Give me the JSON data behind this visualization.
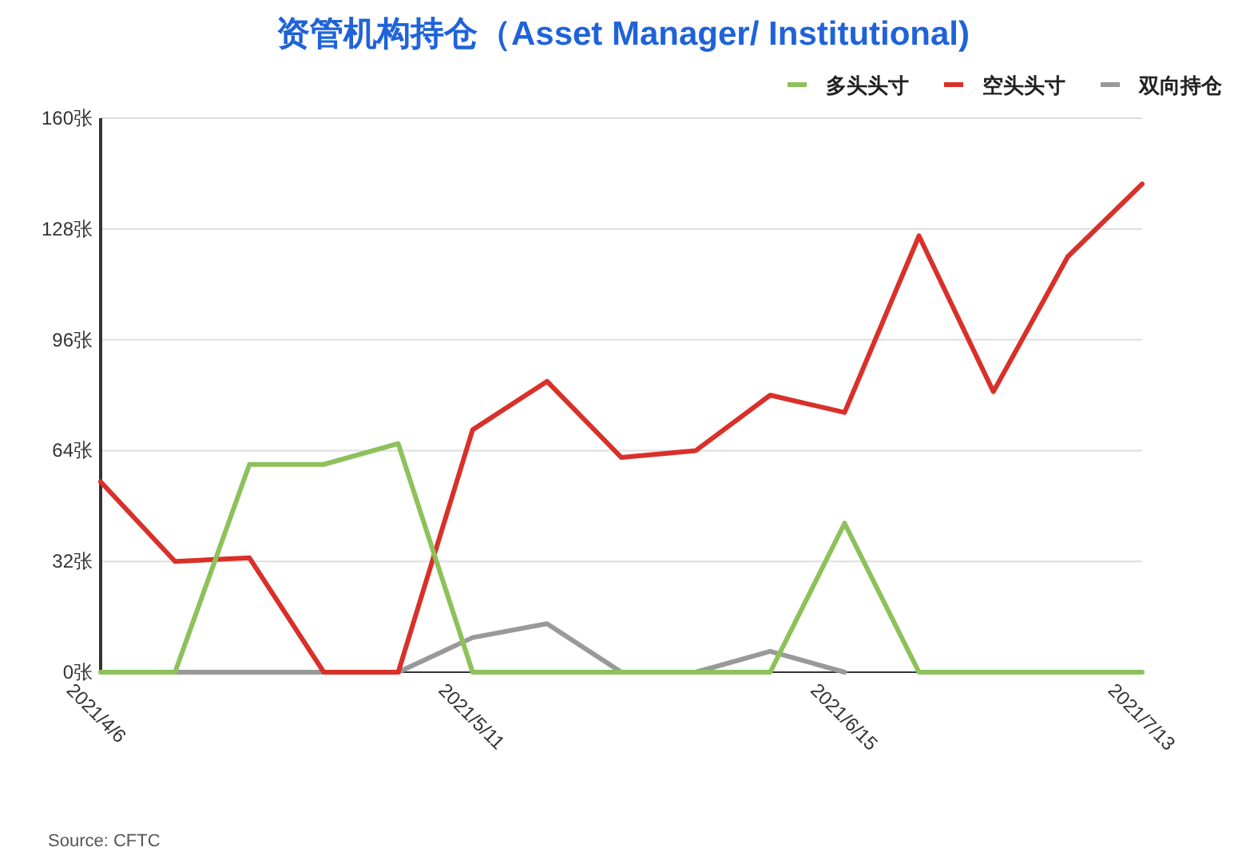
{
  "chart_data": {
    "type": "line",
    "title": "资管机构持仓（Asset Manager/ Institutional)",
    "categories": [
      "2021/4/6",
      null,
      null,
      null,
      null,
      "2021/5/11",
      null,
      null,
      null,
      null,
      "2021/6/15",
      null,
      null,
      null,
      "2021/7/13"
    ],
    "series": [
      {
        "name": "多头头寸",
        "color": "#8dc15a",
        "values": [
          0,
          0,
          60,
          60,
          66,
          0,
          0,
          0,
          0,
          0,
          43,
          0,
          0,
          0,
          0
        ]
      },
      {
        "name": "空头头寸",
        "color": "#d9302a",
        "values": [
          55,
          32,
          33,
          0,
          0,
          70,
          84,
          62,
          64,
          80,
          75,
          126,
          81,
          120,
          141
        ]
      },
      {
        "name": "双向持仓",
        "color": "#999999",
        "values": [
          null,
          0,
          0,
          0,
          0,
          10,
          14,
          0,
          0,
          6,
          0,
          null,
          null,
          null,
          null
        ]
      }
    ],
    "ylim": [
      0,
      160
    ],
    "yticks": [
      {
        "value": 0,
        "label": "0张"
      },
      {
        "value": 32,
        "label": "32张"
      },
      {
        "value": 64,
        "label": "64张"
      },
      {
        "value": 96,
        "label": "96张"
      },
      {
        "value": 128,
        "label": "128张"
      },
      {
        "value": 160,
        "label": "160张"
      }
    ],
    "grid": "y",
    "legend": "top right",
    "marker": "none",
    "line_style": "solid",
    "annotations": [
      "Source: CFTC"
    ]
  }
}
